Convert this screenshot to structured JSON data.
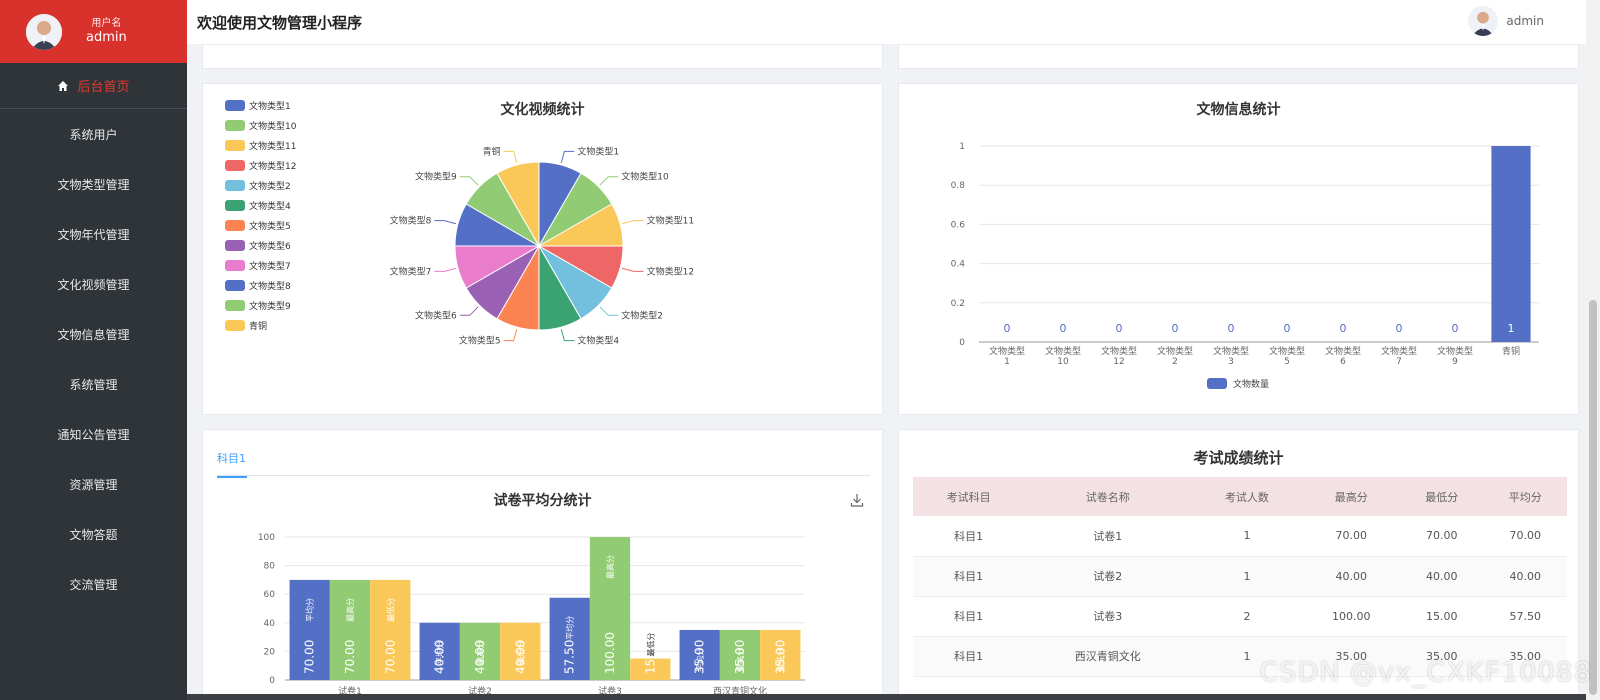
{
  "sidebar": {
    "user_label": "用户名",
    "user_name": "admin",
    "home_label": "后台首页",
    "items": [
      {
        "label": "系统用户"
      },
      {
        "label": "文物类型管理"
      },
      {
        "label": "文物年代管理"
      },
      {
        "label": "文化视频管理"
      },
      {
        "label": "文物信息管理"
      },
      {
        "label": "系统管理"
      },
      {
        "label": "通知公告管理"
      },
      {
        "label": "资源管理"
      },
      {
        "label": "文物答题"
      },
      {
        "label": "交流管理"
      }
    ]
  },
  "header": {
    "title": "欢迎使用文物管理小程序",
    "user_name": "admin"
  },
  "pie_card": {
    "title": "文化视频统计",
    "legend": [
      "文物类型1",
      "文物类型10",
      "文物类型11",
      "文物类型12",
      "文物类型2",
      "文物类型4",
      "文物类型5",
      "文物类型6",
      "文物类型7",
      "文物类型8",
      "文物类型9",
      "青铜"
    ]
  },
  "bar_card": {
    "title": "文物信息统计",
    "legend": "文物数量"
  },
  "exam_card": {
    "tab": "科目1",
    "title": "试卷平均分统计",
    "download_icon": "download-icon"
  },
  "score_card": {
    "title": "考试成绩统计",
    "columns": [
      "考试科目",
      "试卷名称",
      "考试人数",
      "最高分",
      "最低分",
      "平均分"
    ],
    "rows": [
      [
        "科目1",
        "试卷1",
        "1",
        "70.00",
        "70.00",
        "70.00"
      ],
      [
        "科目1",
        "试卷2",
        "1",
        "40.00",
        "40.00",
        "40.00"
      ],
      [
        "科目1",
        "试卷3",
        "2",
        "100.00",
        "15.00",
        "57.50"
      ],
      [
        "科目1",
        "西汉青铜文化",
        "1",
        "35.00",
        "35.00",
        "35.00"
      ]
    ]
  },
  "watermark": "CSDN @vx_CXKF10088",
  "chart_data": [
    {
      "type": "pie",
      "title": "文化视频统计",
      "labels": [
        "文物类型1",
        "文物类型10",
        "文物类型11",
        "文物类型12",
        "文物类型2",
        "文物类型4",
        "文物类型5",
        "文物类型6",
        "文物类型7",
        "文物类型8",
        "文物类型9",
        "青铜"
      ],
      "values": [
        1,
        1,
        1,
        1,
        1,
        1,
        1,
        1,
        1,
        1,
        1,
        1
      ],
      "colors": [
        "#5470c6",
        "#91cc75",
        "#fac858",
        "#ee6666",
        "#73c0de",
        "#3ba272",
        "#fc8452",
        "#9a60b4",
        "#ea7ccc",
        "#5470c6",
        "#91cc75",
        "#fac858"
      ],
      "legend_position": "left"
    },
    {
      "type": "bar",
      "title": "文物信息统计",
      "categories": [
        "文物类型1",
        "文物类型10",
        "文物类型12",
        "文物类型2",
        "文物类型3",
        "文物类型5",
        "文物类型6",
        "文物类型7",
        "文物类型9",
        "青铜"
      ],
      "series": [
        {
          "name": "文物数量",
          "values": [
            0,
            0,
            0,
            0,
            0,
            0,
            0,
            0,
            0,
            1
          ],
          "color": "#5470c6"
        }
      ],
      "ylim": [
        0,
        1
      ],
      "yticks": [
        0,
        0.2,
        0.4,
        0.6,
        0.8,
        1
      ],
      "legend_position": "bottom"
    },
    {
      "type": "bar",
      "title": "试卷平均分统计",
      "categories": [
        "试卷1",
        "试卷2",
        "试卷3",
        "西汉青铜文化"
      ],
      "series": [
        {
          "name": "平均分",
          "values": [
            70,
            40,
            57.5,
            35
          ],
          "color": "#5470c6"
        },
        {
          "name": "最高分",
          "values": [
            70,
            40,
            100,
            35
          ],
          "color": "#91cc75"
        },
        {
          "name": "最低分",
          "values": [
            70,
            40,
            15,
            35
          ],
          "color": "#fac858"
        }
      ],
      "value_labels": [
        [
          "70.00",
          "40.00",
          "57.50",
          "35.00"
        ],
        [
          "70.00",
          "40.00",
          "100.00",
          "35.00"
        ],
        [
          "70.00",
          "40.00",
          "15.00",
          "35.00"
        ]
      ],
      "ylim": [
        0,
        100
      ],
      "yticks": [
        0,
        20,
        40,
        60,
        80,
        100
      ]
    }
  ]
}
